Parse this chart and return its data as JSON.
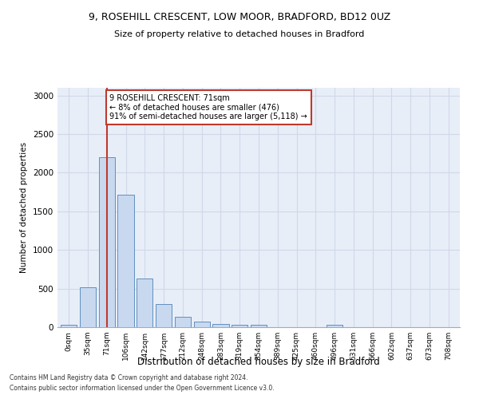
{
  "title1": "9, ROSEHILL CRESCENT, LOW MOOR, BRADFORD, BD12 0UZ",
  "title2": "Size of property relative to detached houses in Bradford",
  "xlabel": "Distribution of detached houses by size in Bradford",
  "ylabel": "Number of detached properties",
  "footnote1": "Contains HM Land Registry data © Crown copyright and database right 2024.",
  "footnote2": "Contains public sector information licensed under the Open Government Licence v3.0.",
  "bar_labels": [
    "0sqm",
    "35sqm",
    "71sqm",
    "106sqm",
    "142sqm",
    "177sqm",
    "212sqm",
    "248sqm",
    "283sqm",
    "319sqm",
    "354sqm",
    "389sqm",
    "425sqm",
    "460sqm",
    "496sqm",
    "531sqm",
    "566sqm",
    "602sqm",
    "637sqm",
    "673sqm",
    "708sqm"
  ],
  "bar_values": [
    30,
    520,
    2200,
    1720,
    635,
    295,
    130,
    75,
    45,
    35,
    35,
    0,
    0,
    0,
    30,
    0,
    0,
    0,
    0,
    0,
    0
  ],
  "bar_color": "#c8d8ef",
  "bar_edge_color": "#6090c0",
  "highlight_bar_index": 2,
  "highlight_line_color": "#c0392b",
  "ylim": [
    0,
    3100
  ],
  "yticks": [
    0,
    500,
    1000,
    1500,
    2000,
    2500,
    3000
  ],
  "annotation_line1": "9 ROSEHILL CRESCENT: 71sqm",
  "annotation_line2": "← 8% of detached houses are smaller (476)",
  "annotation_line3": "91% of semi-detached houses are larger (5,118) →",
  "annotation_box_color": "#c0392b",
  "grid_color": "#d0d8e8",
  "background_color": "#e8eef8"
}
